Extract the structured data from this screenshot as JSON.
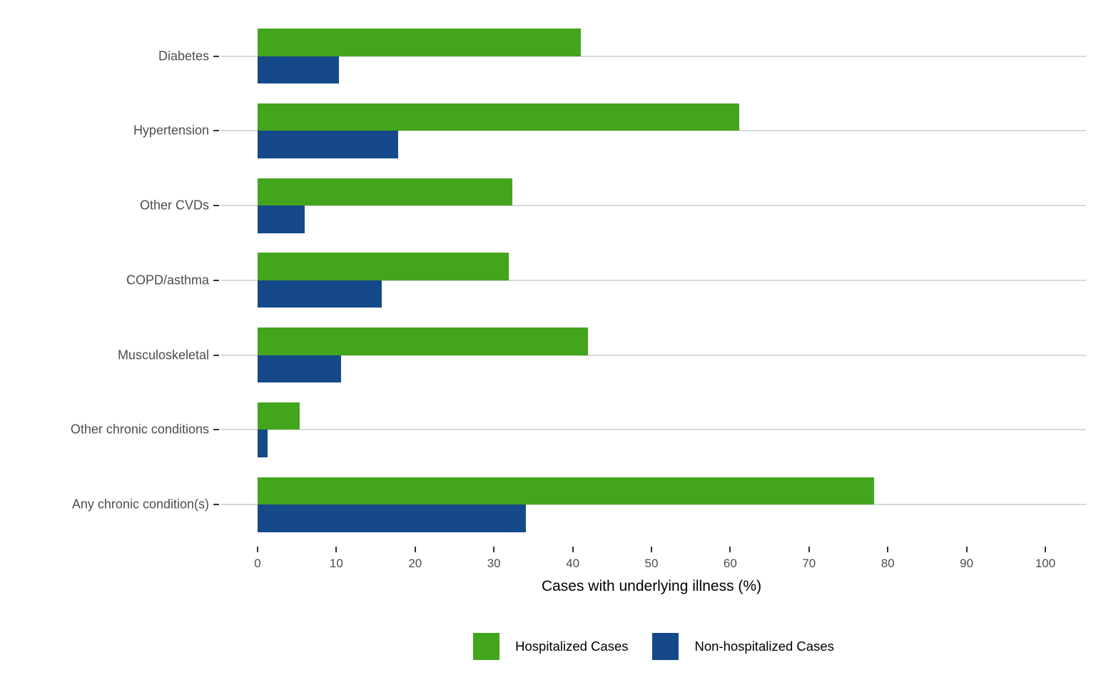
{
  "chart_data": {
    "type": "bar",
    "orientation": "horizontal",
    "title": "",
    "xlabel": "Cases with underlying illness (%)",
    "ylabel": "",
    "xlim": [
      0,
      100
    ],
    "x_ticks": [
      0,
      10,
      20,
      30,
      40,
      50,
      60,
      70,
      80,
      90,
      100
    ],
    "grid": "horizontal-only",
    "legend_position": "bottom",
    "categories": [
      "Diabetes",
      "Hypertension",
      "Other CVDs",
      "COPD/asthma",
      "Musculoskeletal",
      "Other chronic conditions",
      "Any chronic condition(s)"
    ],
    "series": [
      {
        "name": "Hospitalized Cases",
        "color": "#43A51C",
        "values": [
          41.0,
          61.1,
          32.3,
          31.9,
          41.9,
          5.3,
          78.3
        ]
      },
      {
        "name": "Non-hospitalized Cases",
        "color": "#15498A",
        "values": [
          10.3,
          17.8,
          6.0,
          15.8,
          10.6,
          1.3,
          34.1
        ]
      }
    ],
    "colors": {
      "gridline": "#d9d9d9",
      "tick": "#333333",
      "axis_text": "#4d4d4d",
      "axis_title": "#000000"
    }
  }
}
